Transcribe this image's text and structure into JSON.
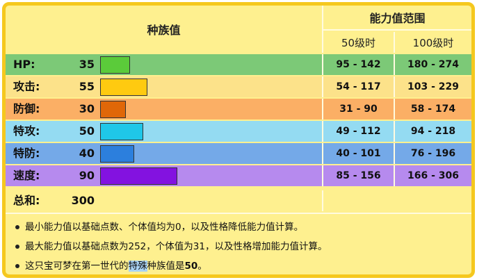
{
  "header": {
    "base_stats": "种族值",
    "stat_range": "能力值范围",
    "lv50": "50级时",
    "lv100": "100级时"
  },
  "stats": [
    {
      "label": "HP:",
      "value": "35",
      "fraction": 0.1373,
      "range50": "95 - 142",
      "range100": "180 - 274",
      "row_color": "#7CC977",
      "bar_color": "#5BCB3A"
    },
    {
      "label": "攻击:",
      "value": "55",
      "fraction": 0.2157,
      "range50": "54 - 117",
      "range100": "103 - 229",
      "row_color": "#FCE28A",
      "bar_color": "#FFCA10"
    },
    {
      "label": "防御:",
      "value": "30",
      "fraction": 0.1176,
      "range50": "31 - 90",
      "range100": "58 - 174",
      "row_color": "#FBAF65",
      "bar_color": "#E06708"
    },
    {
      "label": "特攻:",
      "value": "50",
      "fraction": 0.1961,
      "range50": "49 - 112",
      "range100": "94 - 218",
      "row_color": "#94DBF2",
      "bar_color": "#1FC7E8"
    },
    {
      "label": "特防:",
      "value": "40",
      "fraction": 0.1569,
      "range50": "40 - 101",
      "range100": "76 - 196",
      "row_color": "#74A9E8",
      "bar_color": "#2C7FDD"
    },
    {
      "label": "速度:",
      "value": "90",
      "fraction": 0.3529,
      "range50": "85 - 156",
      "range100": "166 - 306",
      "row_color": "#B68AEE",
      "bar_color": "#8312E0"
    }
  ],
  "total": {
    "label": "总和:",
    "value": "300"
  },
  "notes": {
    "n1": "最小能力值以基础点数、个体值均为0，以及性格降低能力值计算。",
    "n2": "最大能力值以基础点数为252，个体值为31，以及性格增加能力值计算。",
    "n3_pre": "这只宝可梦在第一世代的",
    "n3_hl": "特殊",
    "n3_mid": "种族值是",
    "n3_val": "50",
    "n3_end": "。"
  }
}
